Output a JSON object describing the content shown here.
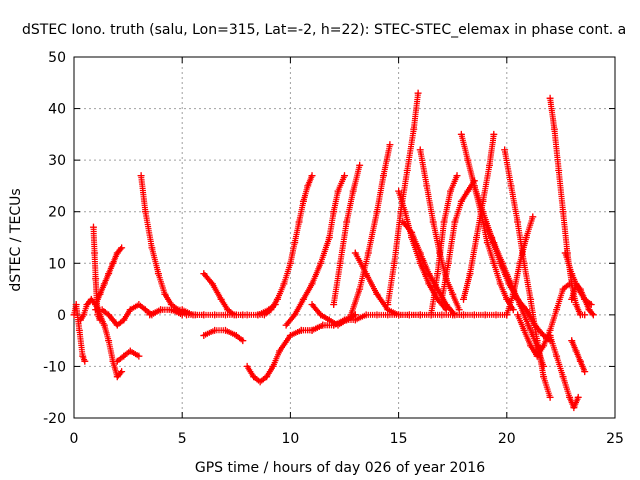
{
  "chart_data": {
    "type": "scatter",
    "title": "dSTEC Iono. truth (salu, Lon=315, Lat=-2, h=22): STEC-STEC_elemax in phase cont. a",
    "xlabel": "GPS time / hours of day 026 of year 2016",
    "ylabel": "dSTEC  / TECUs",
    "xlim": [
      0,
      25
    ],
    "ylim": [
      -20,
      50
    ],
    "xticks": [
      0,
      5,
      10,
      15,
      20,
      25
    ],
    "yticks": [
      -20,
      -10,
      0,
      10,
      20,
      30,
      40,
      50
    ],
    "grid": true,
    "marker": "plus",
    "color": "#ff0000",
    "series": [
      {
        "x": [
          0.0,
          0.1,
          0.25,
          0.4,
          0.5
        ],
        "y": [
          0,
          2,
          -3,
          -8,
          -9
        ]
      },
      {
        "x": [
          0.3,
          0.45,
          0.6,
          0.8,
          1.0,
          1.2,
          1.4,
          1.6,
          1.8,
          2.0,
          2.2
        ],
        "y": [
          -1,
          0,
          2,
          3,
          2,
          0,
          -2,
          -5,
          -9,
          -12,
          -11
        ]
      },
      {
        "x": [
          0.9,
          0.95,
          1.0,
          1.05,
          1.1,
          1.2
        ],
        "y": [
          17,
          12,
          7,
          3,
          0,
          -1
        ]
      },
      {
        "x": [
          1.0,
          1.2,
          1.4,
          1.6,
          1.8,
          2.0,
          2.2
        ],
        "y": [
          2,
          4,
          6,
          8,
          10,
          12,
          13
        ]
      },
      {
        "x": [
          1.0,
          1.3,
          1.6,
          1.8,
          2.0,
          2.3,
          2.6,
          3.0,
          3.3,
          3.6,
          4.0,
          4.5,
          5.0
        ],
        "y": [
          1,
          1,
          0,
          -1,
          -2,
          -1,
          1,
          2,
          1,
          0,
          1,
          1,
          0
        ]
      },
      {
        "x": [
          2.0,
          2.3,
          2.6,
          3.0
        ],
        "y": [
          -9,
          -8,
          -7,
          -8
        ]
      },
      {
        "x": [
          3.1,
          3.3,
          3.6,
          3.9,
          4.2,
          4.5,
          4.8,
          5.2,
          5.6,
          6.0
        ],
        "y": [
          27,
          20,
          13,
          8,
          4,
          2,
          1,
          0,
          0,
          0
        ]
      },
      {
        "x": [
          3.5,
          4.0,
          4.5,
          5.0,
          5.5,
          6.0,
          6.5,
          7.0,
          7.5,
          8.0,
          8.5,
          9.0,
          9.3
        ],
        "y": [
          0,
          1,
          1,
          1,
          0,
          0,
          0,
          0,
          0,
          0,
          0,
          1,
          2
        ]
      },
      {
        "x": [
          6.0,
          6.4,
          6.8,
          7.1,
          7.4,
          7.8
        ],
        "y": [
          8,
          6,
          3,
          1,
          0,
          0
        ]
      },
      {
        "x": [
          6.0,
          6.5,
          7.0,
          7.5,
          7.8
        ],
        "y": [
          -4,
          -3,
          -3,
          -4,
          -5
        ]
      },
      {
        "x": [
          8.0,
          8.3,
          8.6,
          8.9,
          9.2,
          9.5,
          10.0,
          10.5,
          11.0,
          11.5,
          12.0,
          12.5,
          13.0
        ],
        "y": [
          -10,
          -12,
          -13,
          -12,
          -10,
          -7,
          -4,
          -3,
          -3,
          -2,
          -2,
          -1,
          0
        ]
      },
      {
        "x": [
          8.5,
          8.8,
          9.1,
          9.4,
          9.7,
          10.0,
          10.2,
          10.4,
          10.6,
          10.8,
          11.0
        ],
        "y": [
          0,
          0,
          1,
          3,
          6,
          10,
          14,
          18,
          22,
          25,
          27
        ]
      },
      {
        "x": [
          9.8,
          10.2,
          10.6,
          11.0,
          11.4,
          11.8,
          12.0,
          12.2,
          12.5
        ],
        "y": [
          -2,
          0,
          3,
          6,
          10,
          15,
          20,
          24,
          27
        ]
      },
      {
        "x": [
          11.0,
          11.4,
          11.8,
          12.2,
          12.6,
          13.0
        ],
        "y": [
          2,
          0,
          -1,
          -2,
          -1,
          0
        ]
      },
      {
        "x": [
          10.5,
          11.0,
          11.5,
          12.0,
          12.5,
          13.0,
          13.5,
          14.0,
          14.5,
          15.0,
          15.5,
          16.0,
          16.5,
          17.0,
          17.5,
          18.0,
          18.5,
          19.0,
          19.5,
          20.0
        ],
        "y": [
          -3,
          -3,
          -2,
          -2,
          -1,
          -1,
          0,
          0,
          0,
          0,
          0,
          0,
          0,
          0,
          0,
          0,
          0,
          0,
          0,
          0
        ]
      },
      {
        "x": [
          12.0,
          12.3,
          12.6,
          12.9,
          13.2
        ],
        "y": [
          2,
          10,
          18,
          24,
          29
        ]
      },
      {
        "x": [
          12.8,
          13.2,
          13.6,
          14.0,
          14.3,
          14.6
        ],
        "y": [
          0,
          5,
          12,
          20,
          27,
          33
        ]
      },
      {
        "x": [
          13.0,
          13.5,
          14.0,
          14.5,
          15.0,
          15.5,
          16.0
        ],
        "y": [
          12,
          8,
          4,
          1,
          0,
          0,
          0
        ]
      },
      {
        "x": [
          14.5,
          14.8,
          15.1,
          15.4,
          15.7,
          15.9
        ],
        "y": [
          2,
          10,
          20,
          28,
          36,
          43
        ]
      },
      {
        "x": [
          15.0,
          15.3,
          15.6,
          16.0,
          16.4,
          16.8,
          17.2
        ],
        "y": [
          24,
          20,
          15,
          10,
          6,
          3,
          1
        ]
      },
      {
        "x": [
          15.2,
          15.6,
          16.0,
          16.4,
          16.8,
          17.2,
          17.6,
          18.0
        ],
        "y": [
          18,
          16,
          12,
          8,
          5,
          2,
          0,
          0
        ]
      },
      {
        "x": [
          16.0,
          16.3,
          16.6,
          16.9,
          17.2,
          17.5,
          17.8
        ],
        "y": [
          32,
          25,
          18,
          12,
          7,
          4,
          1
        ]
      },
      {
        "x": [
          16.5,
          16.8,
          17.1,
          17.4,
          17.7
        ],
        "y": [
          0,
          8,
          18,
          24,
          27
        ]
      },
      {
        "x": [
          17.0,
          17.3,
          17.6,
          17.9,
          18.2,
          18.5
        ],
        "y": [
          3,
          10,
          18,
          22,
          24,
          26
        ]
      },
      {
        "x": [
          17.9,
          18.2,
          18.5,
          18.8,
          19.1,
          19.4,
          19.7,
          20.0,
          20.3
        ],
        "y": [
          35,
          30,
          25,
          20,
          14,
          10,
          6,
          3,
          1
        ]
      },
      {
        "x": [
          18.0,
          18.3,
          18.6,
          18.9,
          19.2,
          19.4
        ],
        "y": [
          3,
          8,
          15,
          22,
          29,
          35
        ]
      },
      {
        "x": [
          18.5,
          18.9,
          19.3,
          19.7,
          20.1,
          20.5,
          20.9,
          21.3,
          21.7,
          22.0
        ],
        "y": [
          25,
          20,
          15,
          10,
          6,
          3,
          1,
          -2,
          -4,
          -5
        ]
      },
      {
        "x": [
          19.0,
          19.4,
          19.8,
          20.2,
          20.6,
          21.0,
          21.4,
          21.7
        ],
        "y": [
          18,
          14,
          10,
          6,
          2,
          -2,
          -6,
          -10
        ]
      },
      {
        "x": [
          19.9,
          20.2,
          20.5,
          20.8,
          21.1,
          21.4,
          21.7,
          22.0
        ],
        "y": [
          32,
          25,
          18,
          10,
          3,
          -5,
          -12,
          -16
        ]
      },
      {
        "x": [
          20.0,
          20.3,
          20.6,
          20.9,
          21.2
        ],
        "y": [
          0,
          4,
          10,
          15,
          19
        ]
      },
      {
        "x": [
          20.5,
          20.8,
          21.1,
          21.4,
          21.7,
          22.0,
          22.3,
          22.6,
          22.9
        ],
        "y": [
          0,
          -3,
          -6,
          -8,
          -6,
          -3,
          1,
          5,
          6
        ]
      },
      {
        "x": [
          22.0,
          22.2,
          22.4,
          22.6,
          22.8,
          23.0,
          23.2,
          23.4,
          23.6
        ],
        "y": [
          42,
          36,
          28,
          20,
          12,
          6,
          2,
          0,
          0
        ]
      },
      {
        "x": [
          22.0,
          22.3,
          22.6,
          22.9,
          23.1,
          23.3
        ],
        "y": [
          -4,
          -8,
          -12,
          -16,
          -18,
          -16
        ]
      },
      {
        "x": [
          23.0,
          23.2,
          23.4,
          23.6,
          23.8,
          24.0
        ],
        "y": [
          3,
          6,
          5,
          3,
          1,
          0
        ]
      },
      {
        "x": [
          23.0,
          23.2,
          23.4,
          23.6
        ],
        "y": [
          -5,
          -7,
          -9,
          -11
        ]
      },
      {
        "x": [
          22.7,
          23.0,
          23.3,
          23.6,
          23.9
        ],
        "y": [
          12,
          8,
          5,
          3,
          2
        ]
      }
    ]
  }
}
